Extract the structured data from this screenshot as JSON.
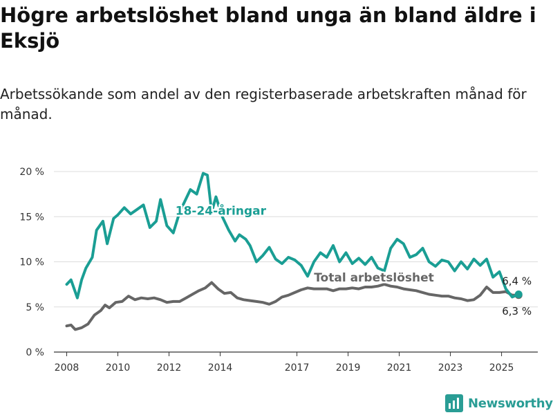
{
  "header": {
    "title": "Högre arbetslöshet bland unga än bland äldre i Eksjö",
    "subtitle": "Arbetssökande som andel av den registerbaserade arbetskraften månad för månad."
  },
  "brand": {
    "name": "Newsworthy",
    "color": "#2a9d95"
  },
  "chart_data": {
    "type": "line",
    "title": "Högre arbetslöshet bland unga än bland äldre i Eksjö",
    "subtitle": "Arbetssökande som andel av den registerbaserade arbetskraften månad för månad.",
    "xlabel": "",
    "ylabel": "",
    "x_ticks": [
      "2008",
      "2010",
      "2012",
      "2014",
      "2017",
      "2019",
      "2021",
      "2023",
      "2025"
    ],
    "y_ticks": [
      "0 %",
      "5 %",
      "10 %",
      "15 %",
      "20 %"
    ],
    "ylim": [
      0,
      20
    ],
    "xlim": [
      "2007-07",
      "2026-06"
    ],
    "grid": true,
    "legend": "none (direct labels)",
    "series": [
      {
        "name": "18-24-åringar",
        "color": "#1a9e94",
        "end_label": "6,4 %",
        "points": [
          [
            "2008-01",
            7.5
          ],
          [
            "2008-03",
            8.0
          ],
          [
            "2008-06",
            6.0
          ],
          [
            "2008-08",
            8.0
          ],
          [
            "2008-10",
            9.3
          ],
          [
            "2009-01",
            10.5
          ],
          [
            "2009-03",
            13.5
          ],
          [
            "2009-06",
            14.5
          ],
          [
            "2009-08",
            12.0
          ],
          [
            "2009-11",
            14.8
          ],
          [
            "2010-01",
            15.2
          ],
          [
            "2010-04",
            16.0
          ],
          [
            "2010-07",
            15.3
          ],
          [
            "2010-10",
            15.8
          ],
          [
            "2011-01",
            16.3
          ],
          [
            "2011-04",
            13.8
          ],
          [
            "2011-07",
            14.5
          ],
          [
            "2011-09",
            16.9
          ],
          [
            "2011-12",
            14.0
          ],
          [
            "2012-03",
            13.2
          ],
          [
            "2012-06",
            15.5
          ],
          [
            "2012-09",
            17.0
          ],
          [
            "2012-11",
            18.0
          ],
          [
            "2013-02",
            17.5
          ],
          [
            "2013-05",
            19.8
          ],
          [
            "2013-07",
            19.6
          ],
          [
            "2013-09",
            15.5
          ],
          [
            "2013-11",
            17.2
          ],
          [
            "2014-02",
            15.0
          ],
          [
            "2014-05",
            13.5
          ],
          [
            "2014-08",
            12.3
          ],
          [
            "2014-10",
            13.0
          ],
          [
            "2015-01",
            12.5
          ],
          [
            "2015-03",
            11.8
          ],
          [
            "2015-06",
            10.0
          ],
          [
            "2015-09",
            10.7
          ],
          [
            "2015-12",
            11.6
          ],
          [
            "2016-03",
            10.3
          ],
          [
            "2016-06",
            9.8
          ],
          [
            "2016-09",
            10.5
          ],
          [
            "2016-12",
            10.2
          ],
          [
            "2017-03",
            9.6
          ],
          [
            "2017-06",
            8.4
          ],
          [
            "2017-09",
            10.0
          ],
          [
            "2017-12",
            11.0
          ],
          [
            "2018-03",
            10.5
          ],
          [
            "2018-06",
            11.8
          ],
          [
            "2018-09",
            10.0
          ],
          [
            "2018-12",
            11.0
          ],
          [
            "2019-03",
            9.8
          ],
          [
            "2019-06",
            10.4
          ],
          [
            "2019-09",
            9.7
          ],
          [
            "2019-12",
            10.5
          ],
          [
            "2020-03",
            9.3
          ],
          [
            "2020-06",
            9.0
          ],
          [
            "2020-09",
            11.5
          ],
          [
            "2020-12",
            12.5
          ],
          [
            "2021-03",
            12.0
          ],
          [
            "2021-06",
            10.5
          ],
          [
            "2021-09",
            10.8
          ],
          [
            "2021-12",
            11.5
          ],
          [
            "2022-03",
            10.0
          ],
          [
            "2022-06",
            9.5
          ],
          [
            "2022-09",
            10.2
          ],
          [
            "2022-12",
            10.0
          ],
          [
            "2023-03",
            9.0
          ],
          [
            "2023-06",
            10.0
          ],
          [
            "2023-09",
            9.2
          ],
          [
            "2023-12",
            10.3
          ],
          [
            "2024-03",
            9.6
          ],
          [
            "2024-06",
            10.3
          ],
          [
            "2024-09",
            8.3
          ],
          [
            "2024-12",
            8.9
          ],
          [
            "2025-03",
            7.0
          ],
          [
            "2025-06",
            6.1
          ],
          [
            "2025-09",
            6.4
          ]
        ]
      },
      {
        "name": "Total arbetslöshet",
        "color": "#666666",
        "end_label": "6,3 %",
        "points": [
          [
            "2008-01",
            2.9
          ],
          [
            "2008-03",
            3.0
          ],
          [
            "2008-05",
            2.5
          ],
          [
            "2008-08",
            2.7
          ],
          [
            "2008-11",
            3.1
          ],
          [
            "2009-02",
            4.1
          ],
          [
            "2009-05",
            4.6
          ],
          [
            "2009-07",
            5.2
          ],
          [
            "2009-09",
            4.9
          ],
          [
            "2009-12",
            5.5
          ],
          [
            "2010-03",
            5.6
          ],
          [
            "2010-06",
            6.2
          ],
          [
            "2010-09",
            5.8
          ],
          [
            "2010-12",
            6.0
          ],
          [
            "2011-03",
            5.9
          ],
          [
            "2011-06",
            6.0
          ],
          [
            "2011-09",
            5.8
          ],
          [
            "2011-12",
            5.5
          ],
          [
            "2012-03",
            5.6
          ],
          [
            "2012-06",
            5.6
          ],
          [
            "2012-09",
            6.0
          ],
          [
            "2012-12",
            6.4
          ],
          [
            "2013-03",
            6.8
          ],
          [
            "2013-06",
            7.1
          ],
          [
            "2013-09",
            7.7
          ],
          [
            "2013-12",
            7.0
          ],
          [
            "2014-03",
            6.5
          ],
          [
            "2014-06",
            6.6
          ],
          [
            "2014-09",
            6.0
          ],
          [
            "2014-12",
            5.8
          ],
          [
            "2015-03",
            5.7
          ],
          [
            "2015-06",
            5.6
          ],
          [
            "2015-09",
            5.5
          ],
          [
            "2015-12",
            5.3
          ],
          [
            "2016-03",
            5.6
          ],
          [
            "2016-06",
            6.1
          ],
          [
            "2016-09",
            6.3
          ],
          [
            "2016-12",
            6.6
          ],
          [
            "2017-03",
            6.9
          ],
          [
            "2017-06",
            7.1
          ],
          [
            "2017-09",
            7.0
          ],
          [
            "2017-12",
            7.0
          ],
          [
            "2018-03",
            7.0
          ],
          [
            "2018-06",
            6.8
          ],
          [
            "2018-09",
            7.0
          ],
          [
            "2018-12",
            7.0
          ],
          [
            "2019-03",
            7.1
          ],
          [
            "2019-06",
            7.0
          ],
          [
            "2019-09",
            7.2
          ],
          [
            "2019-12",
            7.2
          ],
          [
            "2020-03",
            7.3
          ],
          [
            "2020-06",
            7.5
          ],
          [
            "2020-09",
            7.3
          ],
          [
            "2020-12",
            7.2
          ],
          [
            "2021-03",
            7.0
          ],
          [
            "2021-06",
            6.9
          ],
          [
            "2021-09",
            6.8
          ],
          [
            "2021-12",
            6.6
          ],
          [
            "2022-03",
            6.4
          ],
          [
            "2022-06",
            6.3
          ],
          [
            "2022-09",
            6.2
          ],
          [
            "2022-12",
            6.2
          ],
          [
            "2023-03",
            6.0
          ],
          [
            "2023-06",
            5.9
          ],
          [
            "2023-09",
            5.7
          ],
          [
            "2023-12",
            5.8
          ],
          [
            "2024-03",
            6.3
          ],
          [
            "2024-06",
            7.2
          ],
          [
            "2024-09",
            6.6
          ],
          [
            "2024-12",
            6.6
          ],
          [
            "2025-03",
            6.7
          ],
          [
            "2025-06",
            6.3
          ],
          [
            "2025-09",
            6.3
          ]
        ]
      }
    ]
  }
}
